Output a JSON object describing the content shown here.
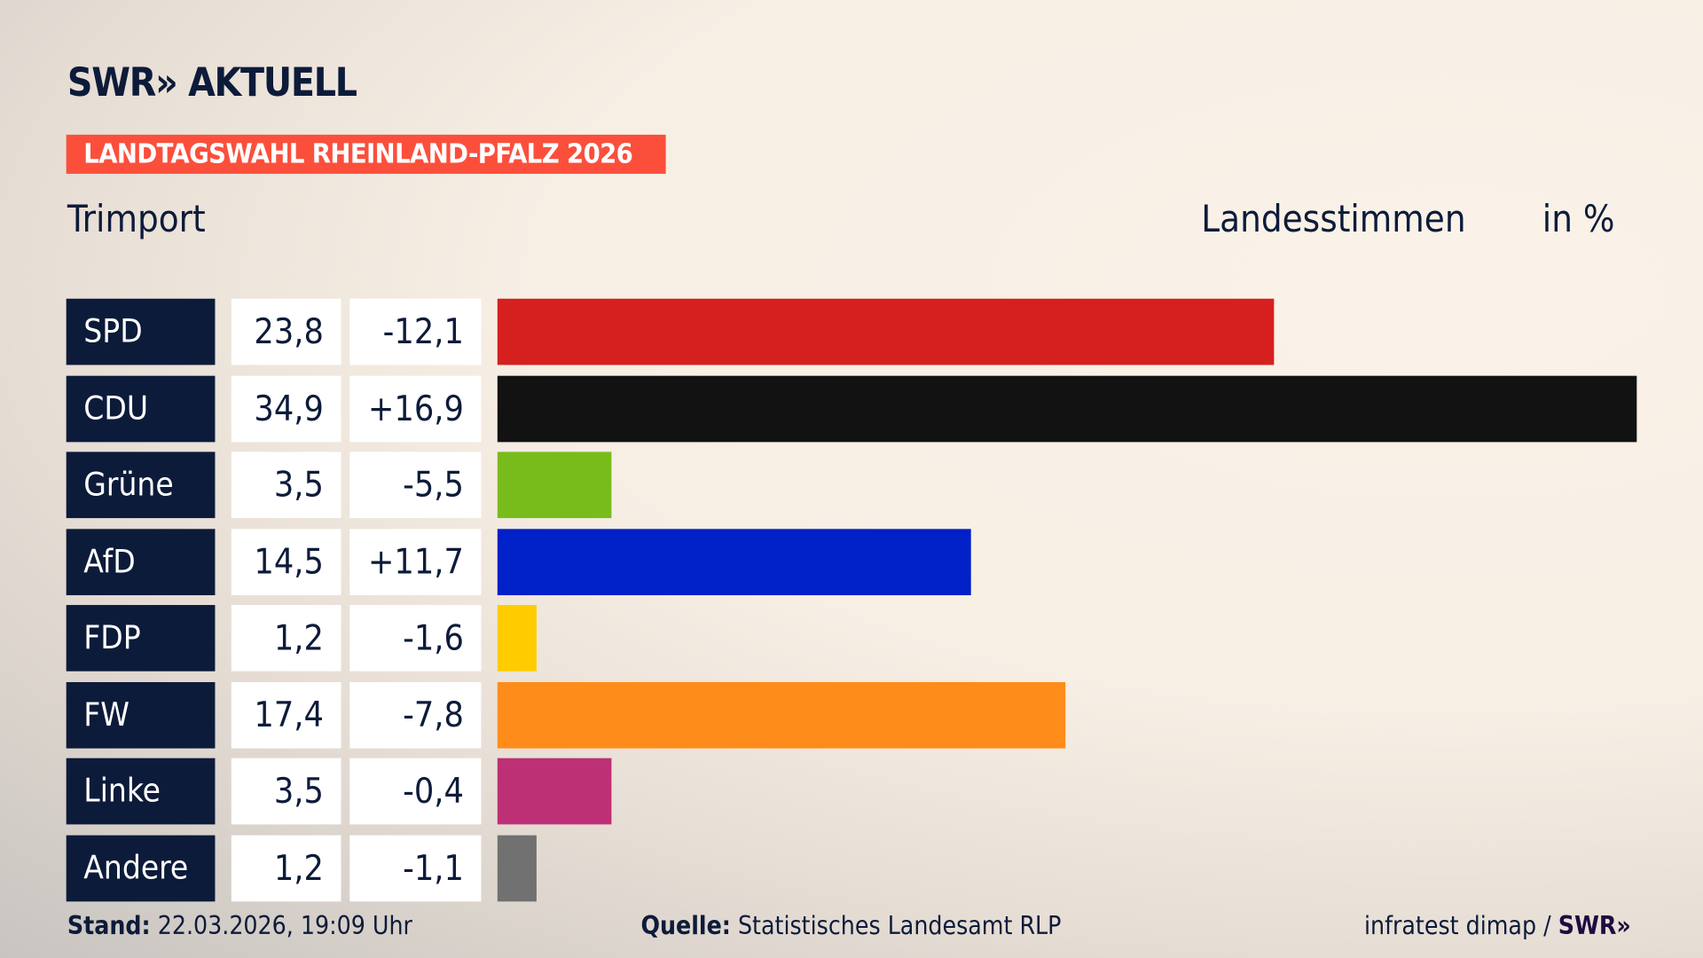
{
  "header": {
    "logo": "SWR» AKTUELL",
    "banner": "LANDTAGSWAHL RHEINLAND-PFALZ 2026",
    "place": "Trimport",
    "measure": "Landesstimmen",
    "unit": "in %"
  },
  "chart_data": {
    "type": "bar",
    "orientation": "horizontal",
    "categories": [
      "SPD",
      "CDU",
      "Grüne",
      "AfD",
      "FDP",
      "FW",
      "Linke",
      "Andere"
    ],
    "values": [
      23.8,
      34.9,
      3.5,
      14.5,
      1.2,
      17.4,
      3.5,
      1.2
    ],
    "value_labels": [
      "23,8",
      "34,9",
      "3,5",
      "14,5",
      "1,2",
      "17,4",
      "3,5",
      "1,2"
    ],
    "diff_labels": [
      "-12,1",
      "+16,9",
      "-5,5",
      "+11,7",
      "-1,6",
      "-7,8",
      "-0,4",
      "-1,1"
    ],
    "colors": [
      "#d61f1f",
      "#121212",
      "#78bc1c",
      "#0020c8",
      "#ffcc00",
      "#fe8c1a",
      "#bd3075",
      "#717171"
    ],
    "xlim": [
      0,
      34.9
    ]
  },
  "footer": {
    "stand_label": "Stand:",
    "stand_value": "22.03.2026, 19:09 Uhr",
    "source_label": "Quelle:",
    "source_value": "Statistisches Landesamt RLP",
    "credit": "infratest dimap /",
    "credit_logo": "SWR»"
  }
}
